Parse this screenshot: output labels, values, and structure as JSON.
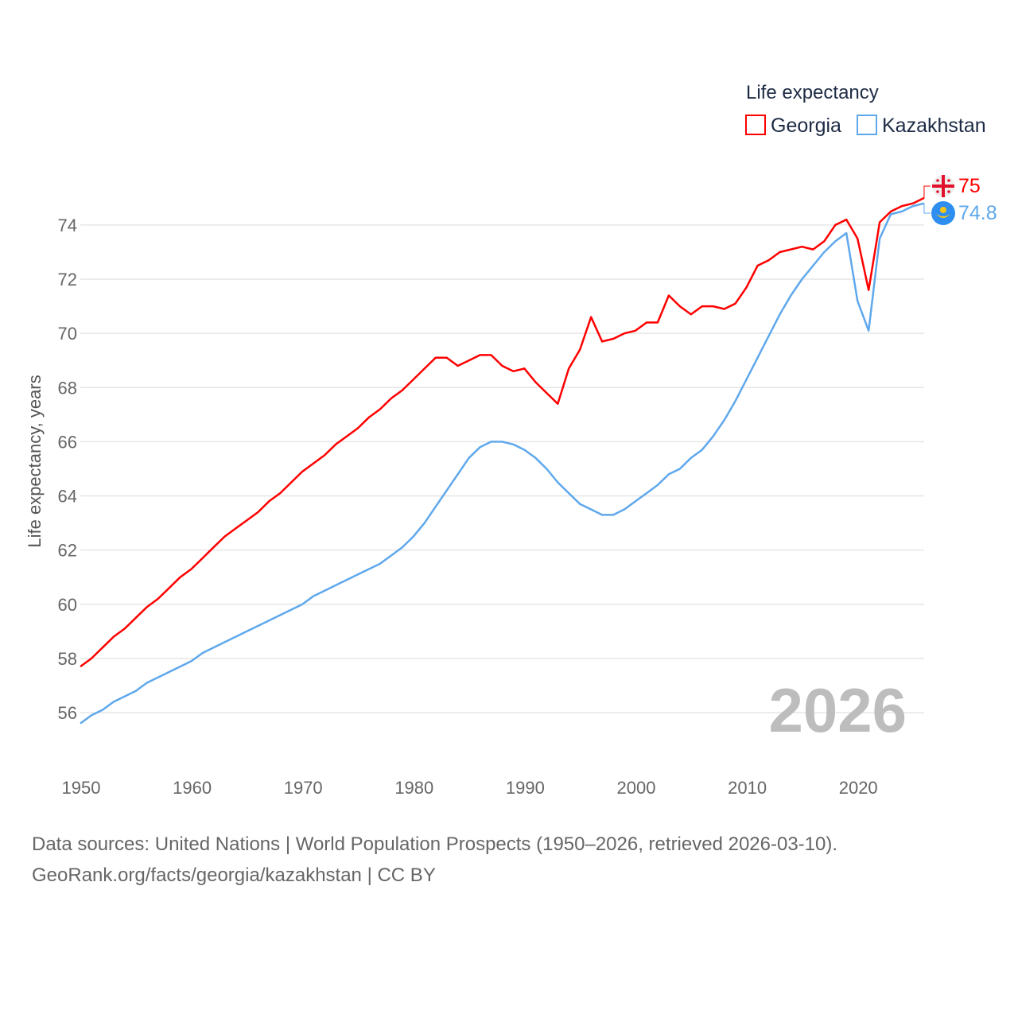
{
  "chart_data": {
    "type": "line",
    "title": "",
    "ylabel": "Life expectancy, years",
    "xlabel": "",
    "xlim": [
      1950,
      2026
    ],
    "ylim": [
      54.8,
      75.6
    ],
    "yticks": [
      56,
      58,
      60,
      62,
      64,
      66,
      68,
      70,
      72,
      74
    ],
    "xticks": [
      1950,
      1960,
      1970,
      1980,
      1990,
      2000,
      2010,
      2020
    ],
    "grid": true,
    "legend": {
      "title": "Life expectancy",
      "placement": "top-right"
    },
    "current_year_label": "2026",
    "x": [
      1950,
      1951,
      1952,
      1953,
      1954,
      1955,
      1956,
      1957,
      1958,
      1959,
      1960,
      1961,
      1962,
      1963,
      1964,
      1965,
      1966,
      1967,
      1968,
      1969,
      1970,
      1971,
      1972,
      1973,
      1974,
      1975,
      1976,
      1977,
      1978,
      1979,
      1980,
      1981,
      1982,
      1983,
      1984,
      1985,
      1986,
      1987,
      1988,
      1989,
      1990,
      1991,
      1992,
      1993,
      1994,
      1995,
      1996,
      1997,
      1998,
      1999,
      2000,
      2001,
      2002,
      2003,
      2004,
      2005,
      2006,
      2007,
      2008,
      2009,
      2010,
      2011,
      2012,
      2013,
      2014,
      2015,
      2016,
      2017,
      2018,
      2019,
      2020,
      2021,
      2022,
      2023,
      2024,
      2025,
      2026
    ],
    "series": [
      {
        "name": "Georgia",
        "color": "#ff0000",
        "end_label": "75",
        "flag": "georgia-flag",
        "values": [
          57.7,
          58.0,
          58.4,
          58.8,
          59.1,
          59.5,
          59.9,
          60.2,
          60.6,
          61.0,
          61.3,
          61.7,
          62.1,
          62.5,
          62.8,
          63.1,
          63.4,
          63.8,
          64.1,
          64.5,
          64.9,
          65.2,
          65.5,
          65.9,
          66.2,
          66.5,
          66.9,
          67.2,
          67.6,
          67.9,
          68.3,
          68.7,
          69.1,
          69.1,
          68.8,
          69.0,
          69.2,
          69.2,
          68.8,
          68.6,
          68.7,
          68.2,
          67.8,
          67.4,
          68.7,
          69.4,
          70.6,
          69.7,
          69.8,
          70.0,
          70.1,
          70.4,
          70.4,
          71.4,
          71.0,
          70.7,
          71.0,
          71.0,
          70.9,
          71.1,
          71.7,
          72.5,
          72.7,
          73.0,
          73.1,
          73.2,
          73.1,
          73.4,
          74.0,
          74.2,
          73.5,
          71.6,
          74.1,
          74.5,
          74.7,
          74.8,
          75.0
        ]
      },
      {
        "name": "Kazakhstan",
        "color": "#5fa8ec",
        "end_label": "74.8",
        "flag": "kazakhstan-flag",
        "values": [
          55.6,
          55.9,
          56.1,
          56.4,
          56.6,
          56.8,
          57.1,
          57.3,
          57.5,
          57.7,
          57.9,
          58.2,
          58.4,
          58.6,
          58.8,
          59.0,
          59.2,
          59.4,
          59.6,
          59.8,
          60.0,
          60.3,
          60.5,
          60.7,
          60.9,
          61.1,
          61.3,
          61.5,
          61.8,
          62.1,
          62.5,
          63.0,
          63.6,
          64.2,
          64.8,
          65.4,
          65.8,
          66.0,
          66.0,
          65.9,
          65.7,
          65.4,
          65.0,
          64.5,
          64.1,
          63.7,
          63.5,
          63.3,
          63.3,
          63.5,
          63.8,
          64.1,
          64.4,
          64.8,
          65.0,
          65.4,
          65.7,
          66.2,
          66.8,
          67.5,
          68.3,
          69.1,
          69.9,
          70.7,
          71.4,
          72.0,
          72.5,
          73.0,
          73.4,
          73.7,
          71.2,
          70.1,
          73.5,
          74.4,
          74.5,
          74.7,
          74.8
        ]
      }
    ]
  },
  "footer": {
    "source_line": "Data sources: United Nations | World Population Prospects (1950–2026, retrieved 2026-03-10).",
    "url_line": "GeoRank.org/facts/georgia/kazakhstan | CC BY"
  }
}
